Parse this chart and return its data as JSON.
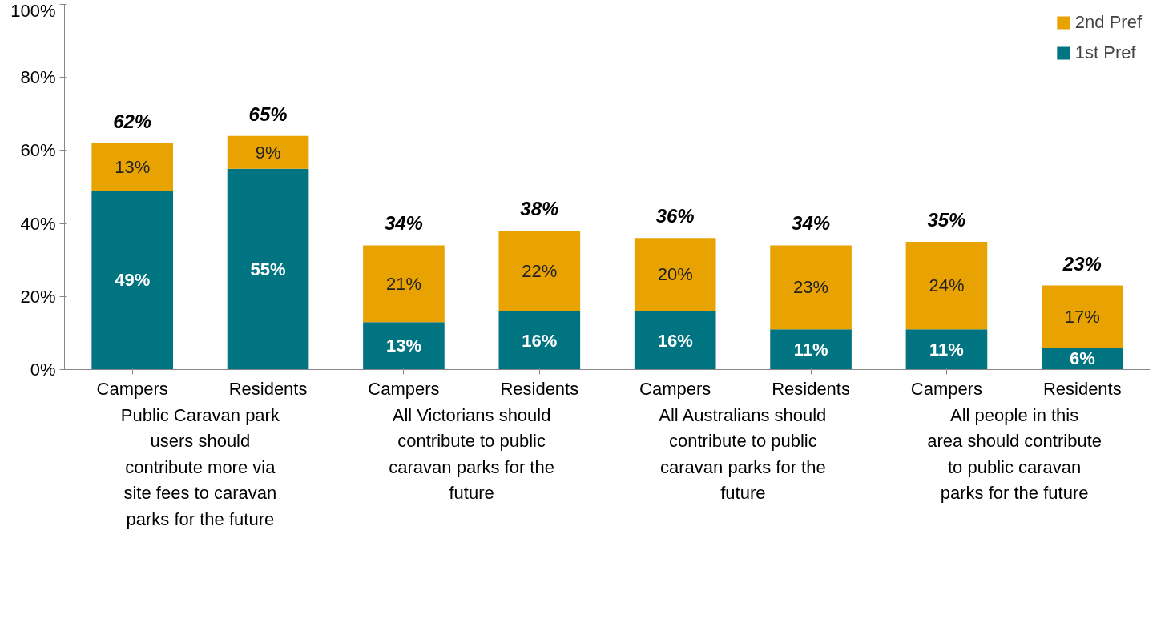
{
  "chart_data": {
    "type": "bar",
    "stacked": true,
    "categories": [
      "Campers",
      "Residents",
      "Campers",
      "Residents",
      "Campers",
      "Residents",
      "Campers",
      "Residents"
    ],
    "series": [
      {
        "name": "1st Pref",
        "color": "#007480",
        "values": [
          49,
          55,
          13,
          16,
          16,
          11,
          11,
          6
        ],
        "value_labels": [
          "49%",
          "55%",
          "13%",
          "16%",
          "16%",
          "11%",
          "11%",
          "6%"
        ]
      },
      {
        "name": "2nd Pref",
        "color": "#e8a202",
        "values": [
          13,
          9,
          21,
          22,
          20,
          23,
          24,
          17
        ],
        "value_labels": [
          "13%",
          "9%",
          "21%",
          "22%",
          "20%",
          "23%",
          "24%",
          "17%"
        ]
      }
    ],
    "totals": [
      "62%",
      "65%",
      "34%",
      "38%",
      "36%",
      "34%",
      "35%",
      "23%"
    ],
    "annotations": [
      "Public Caravan park users should contribute more via site fees to caravan parks for the future",
      "All Victorians should contribute to public caravan parks for the future",
      "All Australians should contribute to public caravan parks for the future",
      "All people in this area should contribute to public caravan parks for the future"
    ],
    "ylim": [
      0,
      100
    ],
    "yticks": [
      {
        "value": 0,
        "label": "0%"
      },
      {
        "value": 20,
        "label": "20%"
      },
      {
        "value": 40,
        "label": "40%"
      },
      {
        "value": 60,
        "label": "60%"
      },
      {
        "value": 80,
        "label": "80%"
      },
      {
        "value": 100,
        "label": "100%"
      }
    ],
    "legend": "top right",
    "grid": false
  }
}
